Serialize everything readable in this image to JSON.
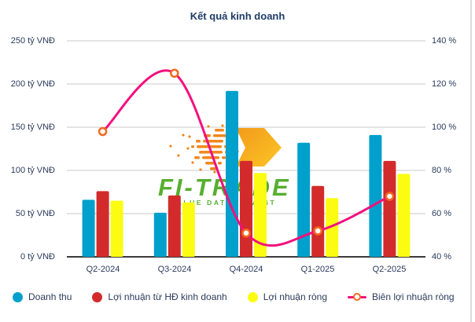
{
  "title": "Kết quả kinh doanh",
  "watermark": {
    "brand": "FI-TRADE",
    "tagline_left": "VALUE DATA",
    "tagline_right": "INVEST"
  },
  "theme": {
    "title": "#1e3c66",
    "text": "#2b3b5c",
    "grid": "#c9c9c9",
    "axis": "#3a3a3a",
    "line": "#f3107e",
    "marker": "#f2691e",
    "watermark-green": "#57ae2f",
    "watermark-orange": "#f0871c"
  },
  "chart_data": {
    "type": "combo_bar_line",
    "title": "Kết quả kinh doanh",
    "categories": [
      "Q2-2024",
      "Q3-2024",
      "Q4-2024",
      "Q1-2025",
      "Q2-2025"
    ],
    "series": [
      {
        "name": "Doanh thu",
        "type": "bar",
        "axis": "left",
        "unit": "tỷ VNĐ",
        "color": "#00a0cc",
        "values": [
          66,
          51,
          192,
          132,
          141
        ]
      },
      {
        "name": "Lợi nhuận từ HĐ kinh doanh",
        "type": "bar",
        "axis": "left",
        "unit": "tỷ VNĐ",
        "color": "#d32b2b",
        "values": [
          76,
          71,
          111,
          82,
          111
        ]
      },
      {
        "name": "Lợi nhuận ròng",
        "type": "bar",
        "axis": "left",
        "unit": "tỷ VNĐ",
        "color": "#fcfc12",
        "values": [
          65,
          63,
          97,
          68,
          96
        ]
      },
      {
        "name": "Biên lợi nhuận ròng",
        "type": "line",
        "axis": "right",
        "unit": "%",
        "color": "#f3107e",
        "marker_color": "#f2691e",
        "values": [
          98,
          125,
          51,
          52,
          68
        ]
      }
    ],
    "yaxis_left": {
      "labels": [
        "0 tỷ VNĐ",
        "50 tỷ VNĐ",
        "100 tỷ VNĐ",
        "150 tỷ VNĐ",
        "200 tỷ VNĐ",
        "250 tỷ VNĐ"
      ],
      "min": 0,
      "max": 250,
      "step": 50
    },
    "yaxis_right": {
      "labels": [
        "40 %",
        "60 %",
        "80 %",
        "100 %",
        "120 %",
        "140 %"
      ],
      "min": 40,
      "max": 140,
      "step": 20
    },
    "grid": true,
    "legend_position": "bottom"
  }
}
